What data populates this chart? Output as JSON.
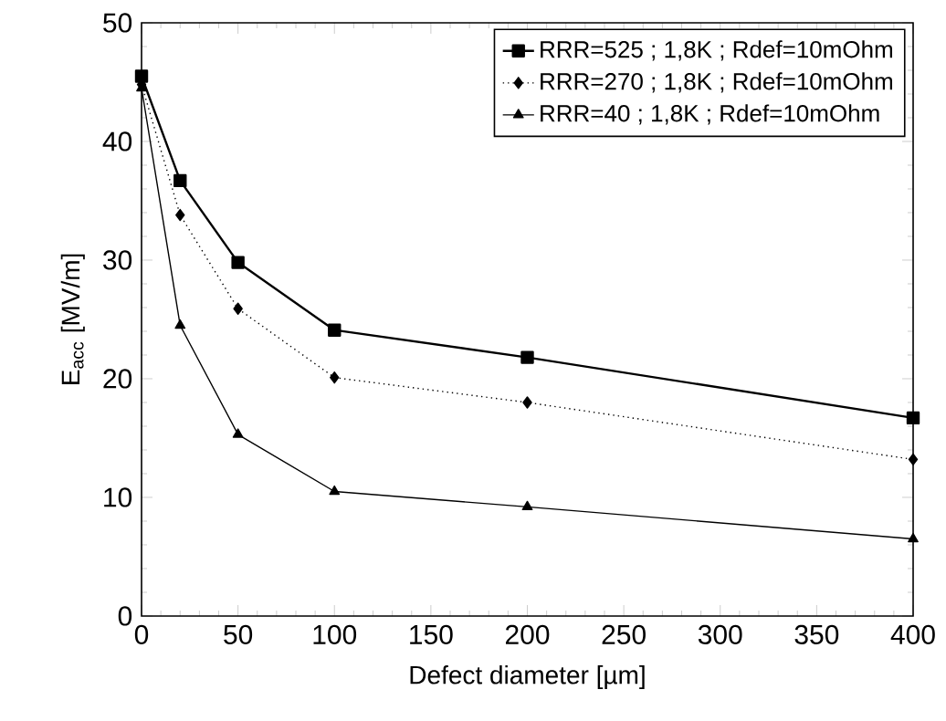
{
  "chart_data": {
    "type": "line",
    "xlabel": "Defect diameter [µm]",
    "ylabel": "E$_{acc}$ [MV/m]",
    "x": [
      0,
      20,
      50,
      100,
      200,
      400
    ],
    "series": [
      {
        "name": "RRR=525 ; 1,8K ; Rdef=10mOhm",
        "color": "#000000",
        "marker": "square",
        "line_style": "solid",
        "values": [
          45.5,
          36.7,
          29.8,
          24.1,
          21.8,
          16.7
        ]
      },
      {
        "name": "RRR=270 ; 1,8K ; Rdef=10mOhm",
        "color": "#000000",
        "marker": "diamond",
        "line_style": "dotted",
        "values": [
          44.8,
          33.8,
          25.9,
          20.1,
          18.0,
          13.2
        ]
      },
      {
        "name": "RRR=40 ; 1,8K ; Rdef=10mOhm",
        "color": "#000000",
        "marker": "triangle",
        "line_style": "solid",
        "values": [
          44.5,
          24.5,
          15.3,
          10.5,
          9.2,
          6.5
        ]
      }
    ],
    "xlim": [
      0,
      400
    ],
    "ylim": [
      0,
      50
    ],
    "xticks": [
      0,
      50,
      100,
      150,
      200,
      250,
      300,
      350,
      400
    ],
    "yticks": [
      0,
      10,
      20,
      30,
      40,
      50
    ],
    "grid": false,
    "legend": "top right"
  }
}
